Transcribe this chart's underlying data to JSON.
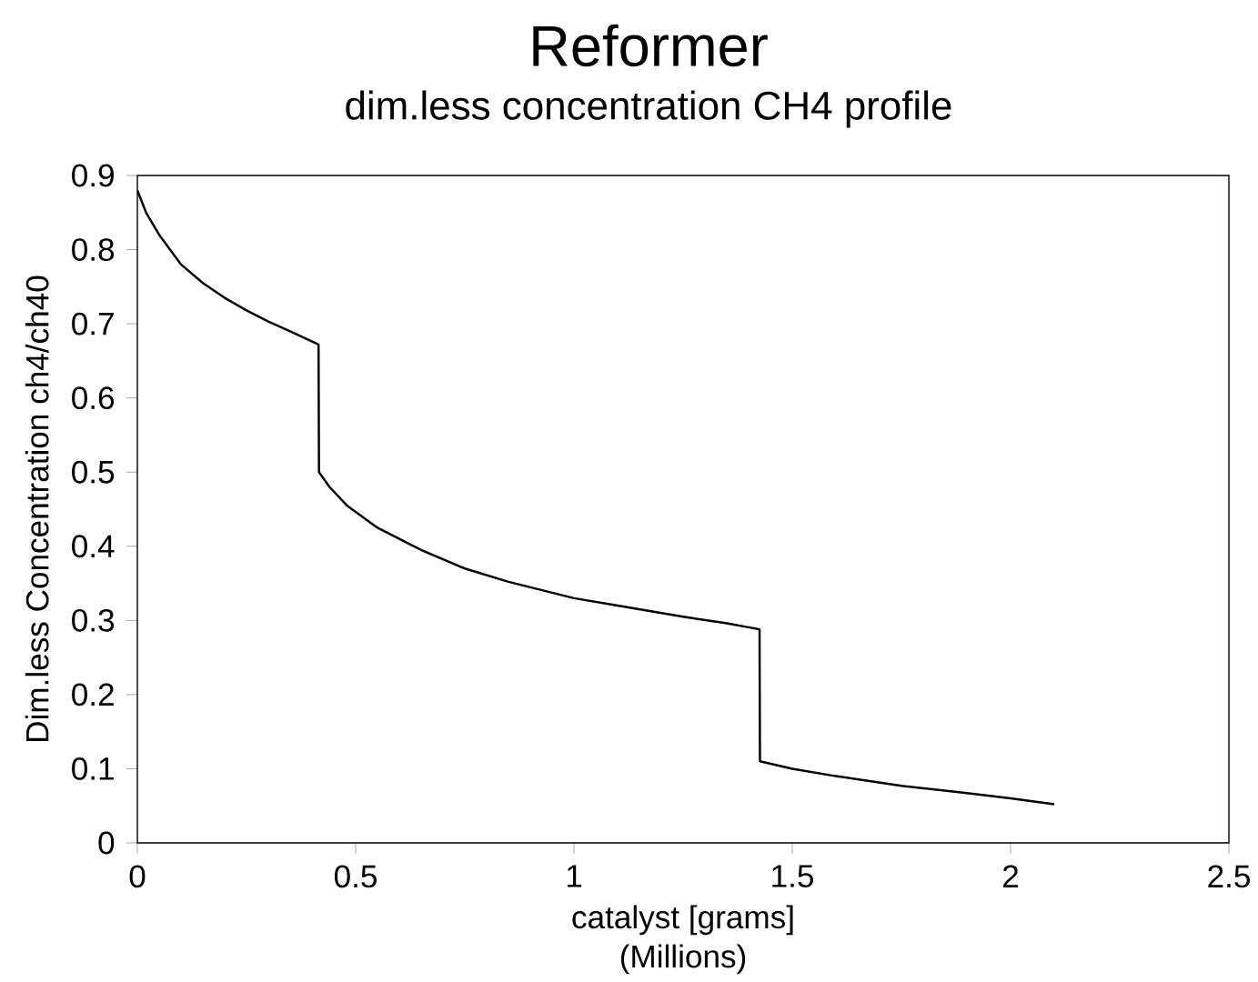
{
  "chart_data": {
    "type": "line",
    "title": "Reformer",
    "subtitle": "dim.less concentration CH4 profile",
    "xlabel": "catalyst [grams]",
    "ylabel": "Dim.less Concentration ch4/ch40",
    "annotations": [
      "(Millions)"
    ],
    "x": [
      0,
      0.02,
      0.05,
      0.1,
      0.15,
      0.2,
      0.25,
      0.3,
      0.35,
      0.415,
      0.416,
      0.44,
      0.48,
      0.55,
      0.65,
      0.75,
      0.85,
      1.0,
      1.1,
      1.25,
      1.35,
      1.425,
      1.426,
      1.5,
      1.6,
      1.75,
      1.9,
      2.0,
      2.1
    ],
    "values": [
      0.88,
      0.85,
      0.82,
      0.78,
      0.755,
      0.735,
      0.718,
      0.703,
      0.69,
      0.672,
      0.5,
      0.48,
      0.455,
      0.425,
      0.395,
      0.37,
      0.352,
      0.33,
      0.32,
      0.305,
      0.296,
      0.288,
      0.11,
      0.1,
      0.09,
      0.077,
      0.067,
      0.06,
      0.052
    ],
    "color": "#000000",
    "xlim": [
      0,
      2.5
    ],
    "xticks": [
      0,
      0.5,
      1,
      1.5,
      2,
      2.5
    ],
    "ylim": [
      0,
      0.9
    ],
    "yticks": [
      0,
      0.1,
      0.2,
      0.3,
      0.4,
      0.5,
      0.6,
      0.7,
      0.8,
      0.9
    ],
    "grid": false
  }
}
